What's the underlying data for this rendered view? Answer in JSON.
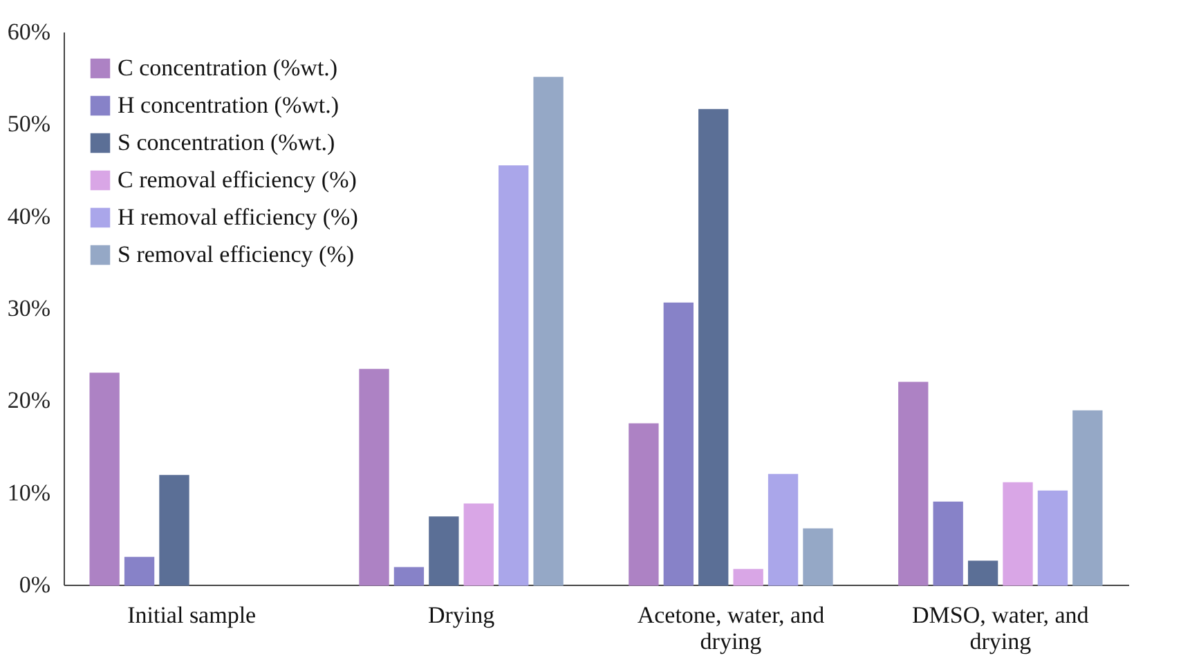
{
  "chart_data": {
    "type": "bar",
    "categories": [
      "Initial sample",
      "Drying",
      "Acetone, water, and drying",
      "DMSO, water, and drying"
    ],
    "series": [
      {
        "name": "C concentration (%wt.)",
        "color": "#ad82c4",
        "values": [
          22.9,
          23.3,
          17.4,
          21.9
        ]
      },
      {
        "name": "H concentration (%wt.)",
        "color": "#8782c8",
        "values": [
          2.9,
          1.8,
          30.5,
          8.9
        ]
      },
      {
        "name": "S concentration (%wt.)",
        "color": "#5b6f96",
        "values": [
          11.8,
          7.3,
          51.5,
          2.5
        ]
      },
      {
        "name": "C removal efficiency (%)",
        "color": "#d9a6e6",
        "values": [
          null,
          8.7,
          1.6,
          11.0
        ]
      },
      {
        "name": "H removal efficiency (%)",
        "color": "#aaa6ea",
        "values": [
          null,
          45.4,
          11.9,
          10.1
        ]
      },
      {
        "name": "S removal efficiency (%)",
        "color": "#95a8c6",
        "values": [
          null,
          55.0,
          6.0,
          18.8
        ]
      }
    ],
    "ylim": [
      0,
      60
    ],
    "yticks": [
      {
        "value": 0,
        "label": "0%"
      },
      {
        "value": 10,
        "label": "10%"
      },
      {
        "value": 20,
        "label": "20%"
      },
      {
        "value": 30,
        "label": "30%"
      },
      {
        "value": 40,
        "label": "40%"
      },
      {
        "value": 50,
        "label": "50%"
      },
      {
        "value": 60,
        "label": "60%"
      }
    ],
    "legend": "top left",
    "grid": false
  }
}
